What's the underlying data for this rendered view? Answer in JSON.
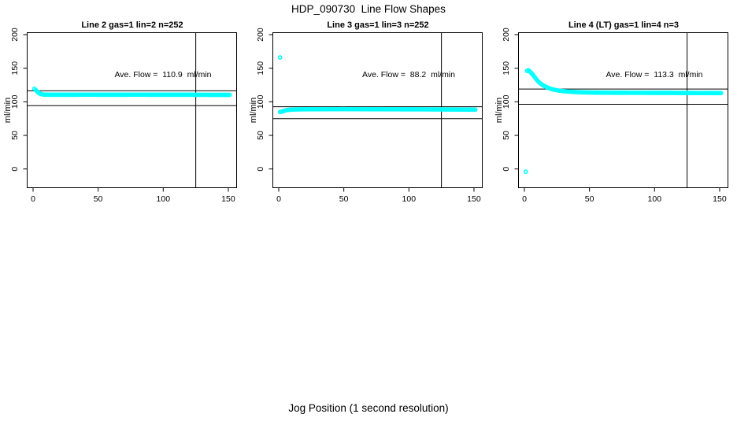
{
  "page": {
    "title": "HDP_090730  Line Flow Shapes",
    "xlabel": "Jog Position (1 second resolution)"
  },
  "colors": {
    "points": "#00ffff",
    "axis": "#000000",
    "background": "#ffffff"
  },
  "chart_data": [
    {
      "type": "scatter",
      "title": "Line 2 gas=1 lin=2 n=252",
      "ylabel": "ml/min",
      "annotation": "Ave. Flow =  110.9  ml/min",
      "ave_flow": 110.9,
      "n": 252,
      "x_ticks": [
        0,
        50,
        100,
        150
      ],
      "y_ticks": [
        0,
        50,
        100,
        150,
        200
      ],
      "xlim": [
        -6,
        157
      ],
      "ylim": [
        -28,
        204
      ],
      "hlines": [
        116.4,
        94.3
      ],
      "vline": 125,
      "trend": [
        [
          1,
          119.5
        ],
        [
          2,
          117.5
        ],
        [
          3,
          115.5
        ],
        [
          4,
          113.8
        ],
        [
          5,
          112.5
        ],
        [
          6,
          111.6
        ],
        [
          7,
          111.1
        ],
        [
          8,
          110.8
        ],
        [
          10,
          110.6
        ],
        [
          15,
          110.5
        ],
        [
          25,
          110.5
        ],
        [
          40,
          110.6
        ],
        [
          60,
          110.5
        ],
        [
          80,
          110.6
        ],
        [
          100,
          110.5
        ],
        [
          120,
          110.5
        ],
        [
          135,
          110.4
        ],
        [
          151,
          110.4
        ]
      ],
      "outliers": []
    },
    {
      "type": "scatter",
      "title": "Line 3 gas=1 lin=3 n=252",
      "ylabel": "ml/min",
      "annotation": "Ave. Flow =  88.2  ml/min",
      "ave_flow": 88.2,
      "n": 252,
      "x_ticks": [
        0,
        50,
        100,
        150
      ],
      "y_ticks": [
        0,
        50,
        100,
        150,
        200
      ],
      "xlim": [
        -6,
        157
      ],
      "ylim": [
        -28,
        204
      ],
      "hlines": [
        92.6,
        75.0
      ],
      "vline": 125,
      "trend": [
        [
          1,
          84.8
        ],
        [
          2,
          85.2
        ],
        [
          3,
          85.8
        ],
        [
          4,
          86.5
        ],
        [
          5,
          87.1
        ],
        [
          6,
          87.6
        ],
        [
          8,
          88.1
        ],
        [
          10,
          88.4
        ],
        [
          14,
          88.7
        ],
        [
          20,
          88.9
        ],
        [
          30,
          89.0
        ],
        [
          50,
          89.1
        ],
        [
          70,
          89.0
        ],
        [
          90,
          88.9
        ],
        [
          110,
          88.8
        ],
        [
          130,
          88.6
        ],
        [
          145,
          88.4
        ],
        [
          151,
          88.3
        ]
      ],
      "outliers": [
        [
          1,
          166
        ]
      ]
    },
    {
      "type": "scatter",
      "title": "Line 4 (LT) gas=1 lin=4 n=3",
      "ylabel": "ml/min",
      "annotation": "Ave. Flow =  113.3  ml/min",
      "ave_flow": 113.3,
      "n": 3,
      "x_ticks": [
        0,
        50,
        100,
        150
      ],
      "y_ticks": [
        0,
        50,
        100,
        150,
        200
      ],
      "xlim": [
        -6,
        157
      ],
      "ylim": [
        -28,
        204
      ],
      "hlines": [
        119.0,
        96.3
      ],
      "vline": 125,
      "trend": [
        [
          2,
          146
        ],
        [
          3,
          147
        ],
        [
          4,
          145.5
        ],
        [
          5,
          143.5
        ],
        [
          6,
          141.5
        ],
        [
          7,
          139
        ],
        [
          8,
          136.5
        ],
        [
          9,
          134
        ],
        [
          10,
          131.5
        ],
        [
          11,
          129.5
        ],
        [
          12,
          127.8
        ],
        [
          13,
          126.3
        ],
        [
          14,
          125
        ],
        [
          16,
          122.8
        ],
        [
          18,
          121
        ],
        [
          20,
          119.5
        ],
        [
          22,
          118.4
        ],
        [
          25,
          117.2
        ],
        [
          28,
          116.3
        ],
        [
          32,
          115.5
        ],
        [
          36,
          114.9
        ],
        [
          40,
          114.5
        ],
        [
          45,
          114.1
        ],
        [
          50,
          113.9
        ],
        [
          60,
          113.6
        ],
        [
          70,
          113.5
        ],
        [
          80,
          113.4
        ],
        [
          90,
          113.4
        ],
        [
          100,
          113.3
        ],
        [
          110,
          113.3
        ],
        [
          120,
          113.2
        ],
        [
          130,
          113.1
        ],
        [
          140,
          113.1
        ],
        [
          151,
          113.0
        ]
      ],
      "outliers": [
        [
          1,
          -4
        ]
      ]
    }
  ]
}
